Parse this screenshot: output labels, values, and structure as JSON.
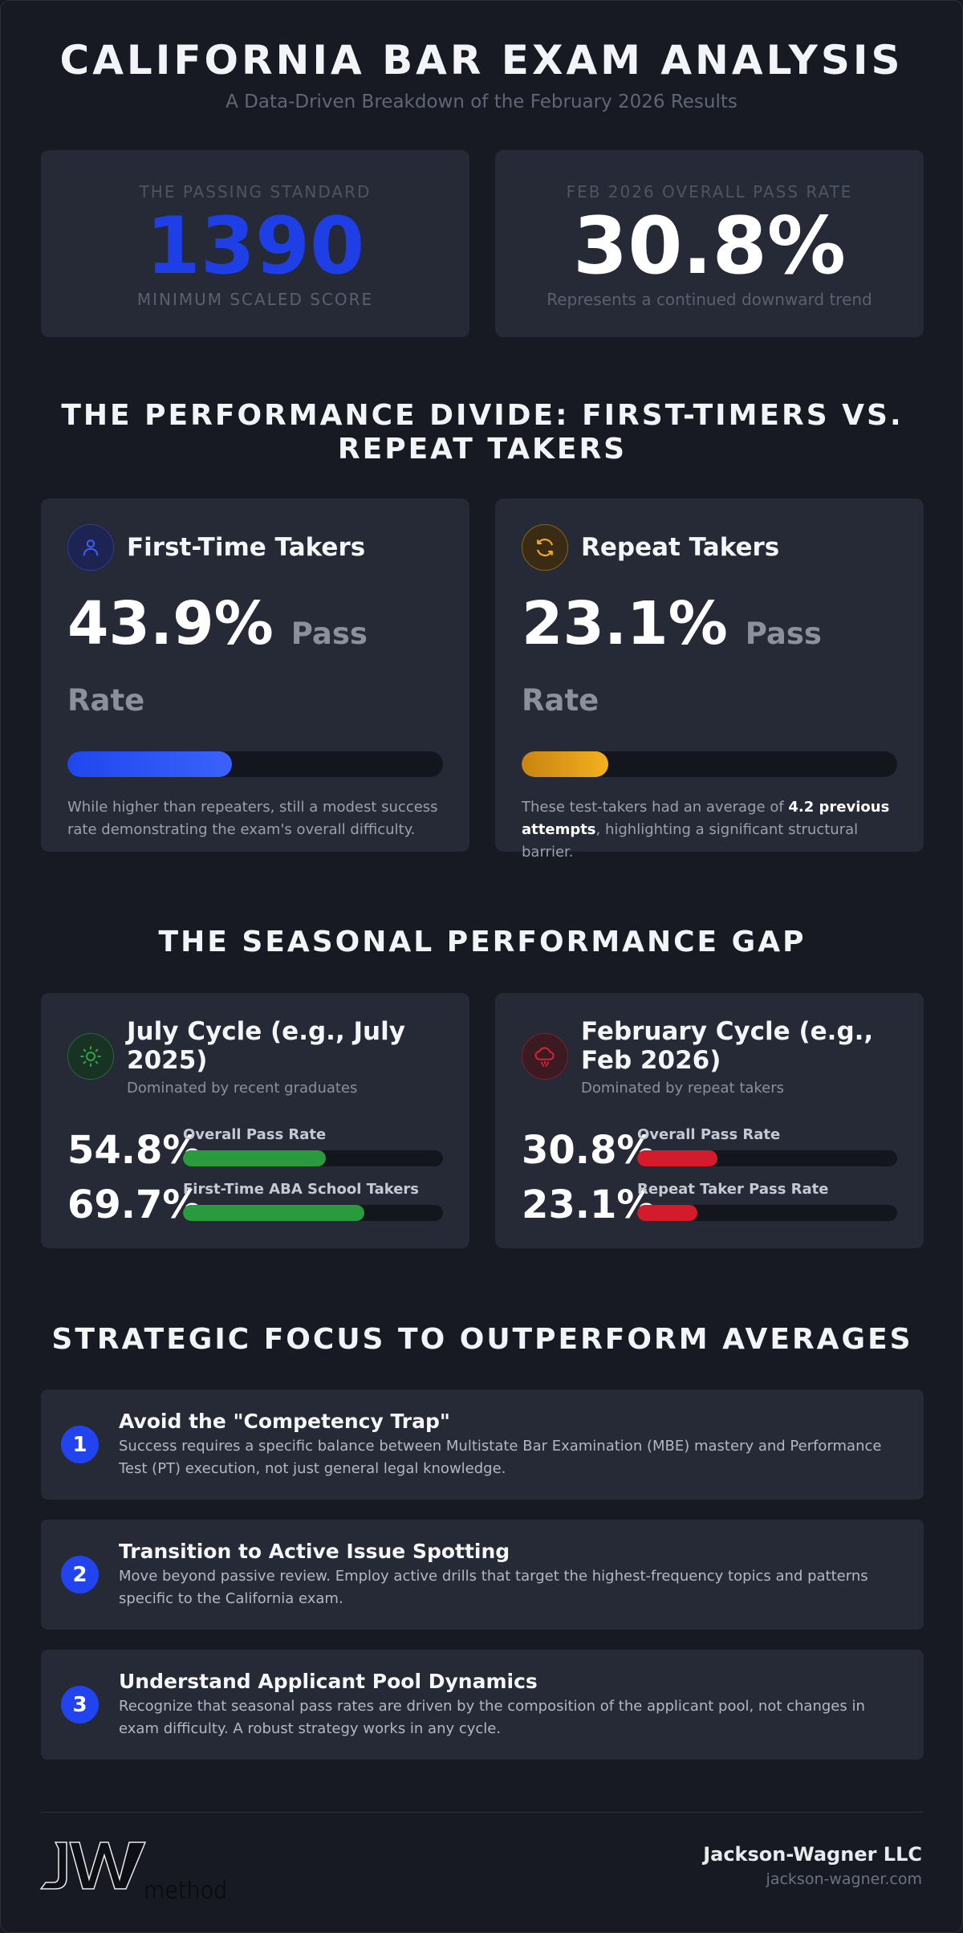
{
  "header": {
    "title": "CALIFORNIA BAR EXAM ANALYSIS",
    "subtitle": "A Data-Driven Breakdown of the February 2026 Results"
  },
  "stats": {
    "passing_standard": {
      "label": "THE PASSING STANDARD",
      "value": "1390",
      "caption": "MINIMUM SCALED SCORE"
    },
    "overall_rate": {
      "label": "FEB 2026 OVERALL PASS RATE",
      "value": "30.8%",
      "caption": "Represents a continued downward trend"
    }
  },
  "divide": {
    "title": "THE PERFORMANCE DIVIDE: FIRST-TIMERS VS. REPEAT TAKERS",
    "first_time": {
      "icon": "user-icon",
      "title": "First-Time Takers",
      "rate": "43.9%",
      "rate_suffix": "Pass Rate",
      "fill": 0.439,
      "description": "While higher than repeaters, still a modest success rate demonstrating the exam's overall difficulty."
    },
    "repeat": {
      "icon": "refresh-icon",
      "title": "Repeat Takers",
      "rate": "23.1%",
      "rate_suffix": "Pass Rate",
      "fill": 0.231,
      "description_before": "These test-takers had an average of ",
      "description_bold": "4.2 previous attempts",
      "description_after": ", highlighting a significant structural barrier."
    }
  },
  "seasonal": {
    "title": "THE SEASONAL PERFORMANCE GAP",
    "july": {
      "icon": "sun-icon",
      "title": "July Cycle (e.g., July 2025)",
      "subtitle": "Dominated by recent graduates",
      "metrics": [
        {
          "value": "54.8%",
          "label": "Overall Pass Rate",
          "fill": 0.548
        },
        {
          "value": "69.7%",
          "label": "First-Time ABA School Takers",
          "fill": 0.697
        }
      ]
    },
    "february": {
      "icon": "cloud-rain-icon",
      "title": "February Cycle (e.g., Feb 2026)",
      "subtitle": "Dominated by repeat takers",
      "metrics": [
        {
          "value": "30.8%",
          "label": "Overall Pass Rate",
          "fill": 0.308
        },
        {
          "value": "23.1%",
          "label": "Repeat Taker Pass Rate",
          "fill": 0.231
        }
      ]
    }
  },
  "strategy": {
    "title": "STRATEGIC FOCUS TO OUTPERFORM AVERAGES",
    "items": [
      {
        "number": "1",
        "title": "Avoid the \"Competency Trap\"",
        "description": "Success requires a specific balance between Multistate Bar Examination (MBE) mastery and Performance Test (PT) execution, not just general legal knowledge."
      },
      {
        "number": "2",
        "title": "Transition to Active Issue Spotting",
        "description": "Move beyond passive review. Employ active drills that target the highest-frequency topics and patterns specific to the California exam."
      },
      {
        "number": "3",
        "title": "Understand Applicant Pool Dynamics",
        "description": "Recognize that seasonal pass rates are driven by the composition of the applicant pool, not changes in exam difficulty. A robust strategy works in any cycle."
      }
    ]
  },
  "footer": {
    "logo_text": "JW method",
    "company": "Jackson-Wagner LLC",
    "url": "jackson-wagner.com"
  },
  "colors": {
    "accent_blue": "#2244ee",
    "amber": "#f3b01e",
    "green": "#2a9a3f",
    "red": "#d41b2c"
  }
}
